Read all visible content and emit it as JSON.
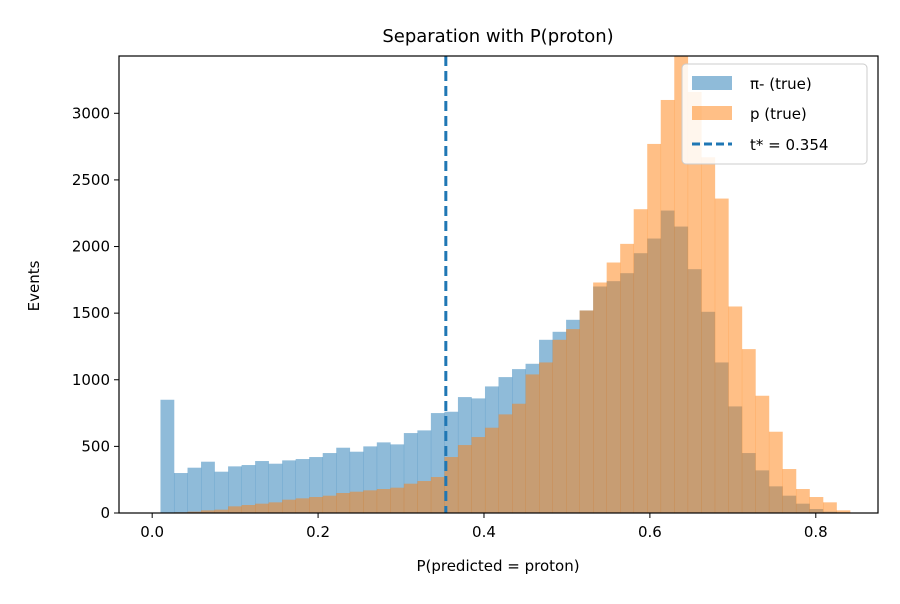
{
  "chart_data": {
    "type": "bar",
    "title": "Separation with P(proton)",
    "xlabel": "P(predicted = proton)",
    "ylabel": "Events",
    "xlim": [
      -0.04,
      0.875
    ],
    "ylim": [
      0,
      3430
    ],
    "bin_start": 0.01,
    "bin_width": 0.0163,
    "xticks": [
      0.0,
      0.2,
      0.4,
      0.6,
      0.8
    ],
    "xtick_labels": [
      "0.0",
      "0.2",
      "0.4",
      "0.6",
      "0.8"
    ],
    "yticks": [
      0,
      500,
      1000,
      1500,
      2000,
      2500,
      3000
    ],
    "ytick_labels": [
      "0",
      "500",
      "1000",
      "1500",
      "2000",
      "2500",
      "3000"
    ],
    "threshold": {
      "value": 0.354,
      "label": "t* = 0.354",
      "color": "#1f77b4"
    },
    "legend_position": "upper-right",
    "series": [
      {
        "name": "π- (true)",
        "color": "#1f77b4",
        "alpha": 0.5,
        "values": [
          850,
          300,
          340,
          385,
          310,
          350,
          360,
          390,
          370,
          395,
          405,
          420,
          450,
          490,
          460,
          500,
          530,
          515,
          600,
          620,
          750,
          760,
          870,
          860,
          950,
          1020,
          1080,
          1120,
          1300,
          1360,
          1450,
          1520,
          1700,
          1740,
          1800,
          1950,
          2060,
          2270,
          2150,
          1830,
          1510,
          1130,
          800,
          450,
          320,
          200,
          130,
          70,
          30,
          10,
          5
        ]
      },
      {
        "name": "p (true)",
        "color": "#ff7f0e",
        "alpha": 0.5,
        "values": [
          2,
          5,
          10,
          20,
          25,
          50,
          60,
          70,
          80,
          100,
          110,
          120,
          130,
          150,
          160,
          170,
          180,
          190,
          220,
          240,
          270,
          420,
          510,
          570,
          640,
          740,
          820,
          1040,
          1130,
          1300,
          1380,
          1520,
          1730,
          1880,
          2020,
          2280,
          2770,
          3100,
          3430,
          3160,
          2670,
          2360,
          1550,
          1230,
          880,
          610,
          330,
          180,
          120,
          80,
          20
        ]
      }
    ]
  }
}
